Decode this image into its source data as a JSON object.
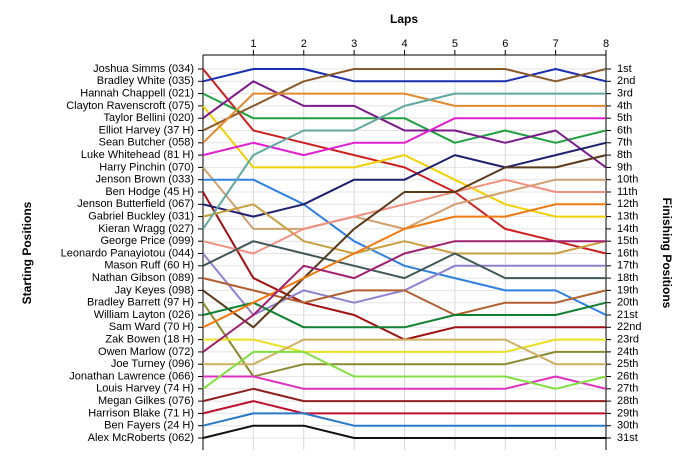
{
  "chart_data": {
    "type": "bump",
    "title": "Laps",
    "y_label": "Starting Positions",
    "y2_label": "Finishing Positions",
    "x": [
      0,
      1,
      2,
      3,
      4,
      5,
      6,
      7,
      8
    ],
    "xlim": [
      0,
      8
    ],
    "xticks": [
      1,
      2,
      3,
      4,
      5,
      6,
      7,
      8
    ],
    "ylim": [
      1,
      31
    ],
    "y_reversed": true,
    "grid": true,
    "yticks": [
      {
        "value": 1,
        "label": "1st"
      },
      {
        "value": 2,
        "label": "2nd"
      },
      {
        "value": 3,
        "label": "3rd"
      },
      {
        "value": 4,
        "label": "4th"
      },
      {
        "value": 5,
        "label": "5th"
      },
      {
        "value": 6,
        "label": "6th"
      },
      {
        "value": 7,
        "label": "7th"
      },
      {
        "value": 8,
        "label": "8th"
      },
      {
        "value": 9,
        "label": "9th"
      },
      {
        "value": 10,
        "label": "10th"
      },
      {
        "value": 11,
        "label": "11th"
      },
      {
        "value": 12,
        "label": "12th"
      },
      {
        "value": 13,
        "label": "13th"
      },
      {
        "value": 14,
        "label": "14th"
      },
      {
        "value": 15,
        "label": "15th"
      },
      {
        "value": 16,
        "label": "16th"
      },
      {
        "value": 17,
        "label": "17th"
      },
      {
        "value": 18,
        "label": "18th"
      },
      {
        "value": 19,
        "label": "19th"
      },
      {
        "value": 20,
        "label": "20th"
      },
      {
        "value": 21,
        "label": "21st"
      },
      {
        "value": 22,
        "label": "22nd"
      },
      {
        "value": 23,
        "label": "23rd"
      },
      {
        "value": 24,
        "label": "24th"
      },
      {
        "value": 25,
        "label": "25th"
      },
      {
        "value": 26,
        "label": "26th"
      },
      {
        "value": 27,
        "label": "27th"
      },
      {
        "value": 28,
        "label": "28th"
      },
      {
        "value": 29,
        "label": "29th"
      },
      {
        "value": 30,
        "label": "30th"
      },
      {
        "value": 31,
        "label": "31st"
      }
    ],
    "series": [
      {
        "name": "Joshua Simms (034)",
        "color": "#cc2020",
        "values": [
          1,
          6,
          7,
          8,
          9,
          11,
          14,
          15,
          16
        ]
      },
      {
        "name": "Bradley White (035)",
        "color": "#1a2fb0",
        "values": [
          2,
          1,
          1,
          2,
          2,
          2,
          2,
          1,
          2
        ]
      },
      {
        "name": "Hannah Chappell (021)",
        "color": "#20a040",
        "values": [
          3,
          5,
          5,
          5,
          5,
          7,
          6,
          7,
          6
        ]
      },
      {
        "name": "Clayton Ravenscroft (075)",
        "color": "#f0d000",
        "values": [
          4,
          9,
          9,
          9,
          8,
          10,
          12,
          13,
          13
        ]
      },
      {
        "name": "Taylor Bellini (020)",
        "color": "#7a1a8a",
        "values": [
          5,
          2,
          4,
          4,
          6,
          6,
          7,
          6,
          9
        ]
      },
      {
        "name": "Elliot Harvey (37 H)",
        "color": "#8a5a2a",
        "values": [
          6,
          4,
          2,
          1,
          1,
          1,
          1,
          2,
          1
        ]
      },
      {
        "name": "Sean Butcher (058)",
        "color": "#e08a30",
        "values": [
          7,
          3,
          3,
          3,
          3,
          4,
          4,
          4,
          4
        ]
      },
      {
        "name": "Luke Whitehead (81 H)",
        "color": "#e020d0",
        "values": [
          8,
          7,
          8,
          7,
          7,
          5,
          5,
          5,
          5
        ]
      },
      {
        "name": "Harry Pinchin (070)",
        "color": "#d0a070",
        "values": [
          9,
          14,
          14,
          13,
          14,
          12,
          11,
          10,
          10
        ]
      },
      {
        "name": "Jenson Brown (033)",
        "color": "#3080e0",
        "values": [
          10,
          10,
          12,
          15,
          17,
          18,
          19,
          19,
          21
        ]
      },
      {
        "name": "Ben Hodge (45 H)",
        "color": "#a01010",
        "values": [
          11,
          18,
          20,
          21,
          23,
          22,
          22,
          22,
          22
        ]
      },
      {
        "name": "Jenson Butterfield (067)",
        "color": "#202070",
        "values": [
          12,
          13,
          12,
          10,
          10,
          8,
          9,
          8,
          7
        ]
      },
      {
        "name": "Gabriel Buckley (031)",
        "color": "#c8a040",
        "values": [
          13,
          12,
          15,
          16,
          15,
          16,
          16,
          16,
          15
        ]
      },
      {
        "name": "Kieran Wragg (027)",
        "color": "#60a8a0",
        "values": [
          14,
          8,
          6,
          6,
          4,
          3,
          3,
          3,
          3
        ]
      },
      {
        "name": "George Price (099)",
        "color": "#f09080",
        "values": [
          15,
          16,
          14,
          13,
          12,
          11,
          10,
          11,
          11
        ]
      },
      {
        "name": "Leonardo Panayiotou (044)",
        "color": "#9080d0",
        "values": [
          16,
          21,
          19,
          20,
          19,
          17,
          17,
          17,
          17
        ]
      },
      {
        "name": "Mason Ruff (60 H)",
        "color": "#405858",
        "values": [
          17,
          15,
          16,
          17,
          18,
          16,
          18,
          18,
          18
        ]
      },
      {
        "name": "Nathan Gibson (089)",
        "color": "#b06030",
        "values": [
          18,
          19,
          20,
          19,
          19,
          21,
          20,
          20,
          19
        ]
      },
      {
        "name": "Jay Keyes (098)",
        "color": "#5a3a1a",
        "values": [
          19,
          22,
          18,
          14,
          11,
          11,
          9,
          9,
          8
        ]
      },
      {
        "name": "Bradley Barrett (97 H)",
        "color": "#8a8a30",
        "values": [
          20,
          26,
          25,
          25,
          25,
          25,
          25,
          24,
          24
        ]
      },
      {
        "name": "William Layton (026)",
        "color": "#108030",
        "values": [
          21,
          20,
          22,
          22,
          22,
          21,
          21,
          21,
          20
        ]
      },
      {
        "name": "Sam Ward (70 H)",
        "color": "#f07a10",
        "values": [
          22,
          20,
          18,
          16,
          14,
          13,
          13,
          12,
          12
        ]
      },
      {
        "name": "Zak Bowen (18 H)",
        "color": "#e8e020",
        "values": [
          23,
          23,
          24,
          24,
          24,
          24,
          24,
          23,
          23
        ]
      },
      {
        "name": "Owen Marlow (072)",
        "color": "#a02070",
        "values": [
          24,
          21,
          17,
          18,
          16,
          15,
          15,
          15,
          15
        ]
      },
      {
        "name": "Joe Turney (096)",
        "color": "#d0b060",
        "values": [
          25,
          25,
          23,
          23,
          23,
          23,
          23,
          25,
          25
        ]
      },
      {
        "name": "Jonathan Lawrence (066)",
        "color": "#e030c0",
        "values": [
          26,
          26,
          27,
          27,
          27,
          27,
          27,
          26,
          27
        ]
      },
      {
        "name": "Louis Harvey (74 H)",
        "color": "#80e040",
        "values": [
          27,
          24,
          24,
          26,
          26,
          26,
          26,
          27,
          26
        ]
      },
      {
        "name": "Megan Gilkes (076)",
        "color": "#902020",
        "values": [
          28,
          27,
          28,
          28,
          28,
          28,
          28,
          28,
          28
        ]
      },
      {
        "name": "Harrison Blake (71 H)",
        "color": "#c01030",
        "values": [
          29,
          28,
          29,
          29,
          29,
          29,
          29,
          29,
          29
        ]
      },
      {
        "name": "Ben Fayers (24 H)",
        "color": "#2a78c8",
        "values": [
          30,
          29,
          29,
          30,
          30,
          30,
          30,
          30,
          30
        ]
      },
      {
        "name": "Alex McRoberts (062)",
        "color": "#101010",
        "values": [
          31,
          30,
          30,
          31,
          31,
          31,
          31,
          31,
          31
        ]
      }
    ]
  }
}
